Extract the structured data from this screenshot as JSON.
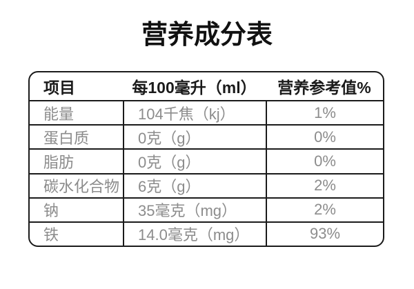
{
  "page": {
    "background_color": "#ffffff",
    "border_color": "#1a1a1a",
    "header_text_color": "#1a1a1a",
    "data_text_color": "#8c8c8c"
  },
  "title": "营养成分表",
  "table": {
    "columns": [
      "项目",
      "每100毫升（ml）",
      "营养参考值%"
    ],
    "rows": [
      {
        "item": "能量",
        "amount": "104千焦（kj）",
        "nrv": "1%"
      },
      {
        "item": "蛋白质",
        "amount": "0克（g）",
        "nrv": "0%"
      },
      {
        "item": "脂肪",
        "amount": "0克（g）",
        "nrv": "0%"
      },
      {
        "item": "碳水化合物",
        "amount": "6克（g）",
        "nrv": "2%"
      },
      {
        "item": "钠",
        "amount": "35毫克（mg）",
        "nrv": "2%"
      },
      {
        "item": "铁",
        "amount": "14.0毫克（mg）",
        "nrv": "93%"
      }
    ]
  }
}
